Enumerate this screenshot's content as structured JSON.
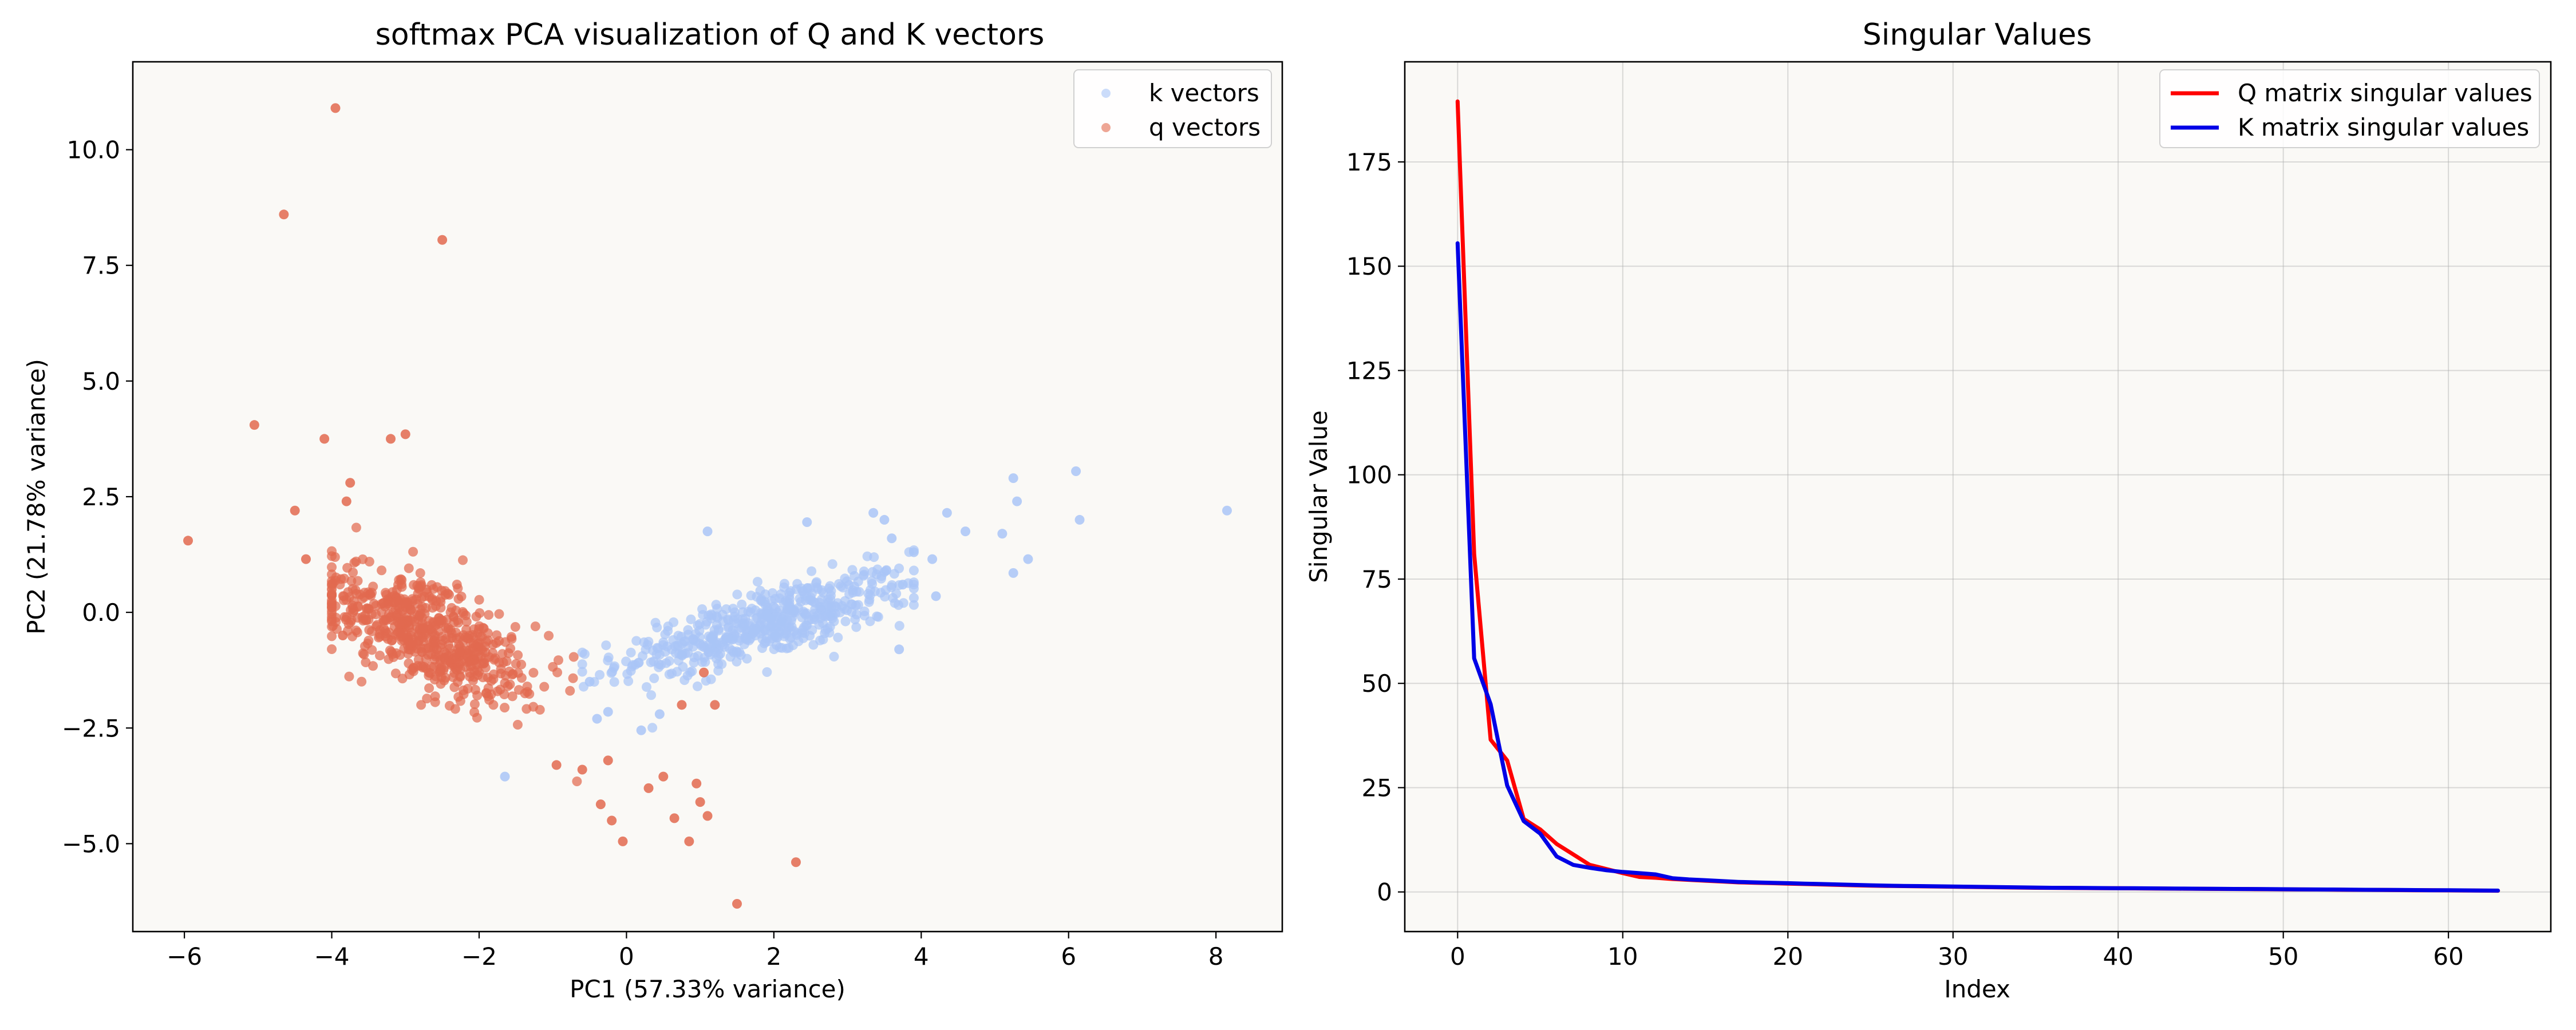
{
  "chart_data": [
    {
      "type": "scatter",
      "title": "softmax PCA visualization of Q and K vectors",
      "xlabel": "PC1 (57.33% variance)",
      "ylabel": "PC2 (21.78% variance)",
      "xlim": [
        -6.7,
        8.9
      ],
      "ylim": [
        -6.9,
        11.9
      ],
      "xticks": [
        -6,
        -4,
        -2,
        0,
        2,
        4,
        6,
        8
      ],
      "yticks": [
        -5.0,
        -2.5,
        0.0,
        2.5,
        5.0,
        7.5,
        10.0
      ],
      "xtick_labels": [
        "−6",
        "−4",
        "−2",
        "0",
        "2",
        "4",
        "6",
        "8"
      ],
      "ytick_labels": [
        "−5.0",
        "−2.5",
        "0.0",
        "2.5",
        "5.0",
        "7.5",
        "10.0"
      ],
      "grid": false,
      "legend": "top-right",
      "background": "#faf9f6",
      "series": [
        {
          "name": "k vectors",
          "color": "#a9c5f7",
          "cluster": {
            "n": 520,
            "center": [
              1.9,
              -0.25
            ],
            "slope": 0.42,
            "spread_x": 1.0,
            "spread_y": 0.38,
            "x_range": [
              -0.6,
              3.9
            ]
          },
          "points": [
            [
              8.15,
              2.2
            ],
            [
              6.1,
              3.05
            ],
            [
              6.15,
              2.0
            ],
            [
              5.25,
              2.9
            ],
            [
              5.3,
              2.4
            ],
            [
              5.1,
              1.7
            ],
            [
              5.45,
              1.15
            ],
            [
              5.25,
              0.85
            ],
            [
              4.35,
              2.15
            ],
            [
              4.6,
              1.75
            ],
            [
              4.15,
              1.15
            ],
            [
              3.9,
              1.3
            ],
            [
              4.2,
              0.35
            ],
            [
              3.6,
              1.6
            ],
            [
              3.5,
              2.0
            ],
            [
              3.75,
              0.6
            ],
            [
              3.7,
              -0.8
            ],
            [
              3.35,
              2.15
            ],
            [
              2.45,
              1.95
            ],
            [
              1.1,
              1.75
            ],
            [
              0.45,
              -2.2
            ],
            [
              -0.25,
              -2.15
            ],
            [
              -0.4,
              -2.3
            ],
            [
              0.2,
              -2.55
            ],
            [
              -1.65,
              -3.55
            ],
            [
              -0.5,
              -1.5
            ]
          ]
        },
        {
          "name": "q vectors",
          "color": "#e26a4f",
          "cluster": {
            "n": 620,
            "center": [
              -2.7,
              -0.5
            ],
            "slope": -0.65,
            "spread_x": 0.75,
            "spread_y": 0.55,
            "x_range": [
              -4.0,
              -0.3
            ]
          },
          "points": [
            [
              -3.95,
              10.9
            ],
            [
              -4.65,
              8.6
            ],
            [
              -2.5,
              8.05
            ],
            [
              -5.05,
              4.05
            ],
            [
              -4.1,
              3.75
            ],
            [
              -3.75,
              2.8
            ],
            [
              -4.5,
              2.2
            ],
            [
              -3.8,
              2.4
            ],
            [
              -3.0,
              3.85
            ],
            [
              -3.2,
              3.75
            ],
            [
              -5.95,
              1.55
            ],
            [
              -4.35,
              1.15
            ],
            [
              -4.0,
              0.5
            ],
            [
              -3.85,
              -0.5
            ],
            [
              -0.95,
              -3.3
            ],
            [
              -0.6,
              -3.4
            ],
            [
              -0.25,
              -3.2
            ],
            [
              0.3,
              -3.8
            ],
            [
              0.5,
              -3.55
            ],
            [
              0.75,
              -2.0
            ],
            [
              1.05,
              -1.3
            ],
            [
              0.95,
              -3.7
            ],
            [
              1.0,
              -4.1
            ],
            [
              0.65,
              -4.45
            ],
            [
              1.1,
              -4.4
            ],
            [
              -0.2,
              -4.5
            ],
            [
              -0.35,
              -4.15
            ],
            [
              -0.05,
              -4.95
            ],
            [
              0.85,
              -4.95
            ],
            [
              1.5,
              -6.3
            ],
            [
              2.3,
              -5.4
            ],
            [
              1.2,
              -2.0
            ]
          ]
        }
      ]
    },
    {
      "type": "line",
      "title": "Singular Values",
      "xlabel": "Index",
      "ylabel": "Singular Value",
      "xlim": [
        -3.2,
        66.2
      ],
      "ylim": [
        -9.5,
        199.0
      ],
      "xticks": [
        0,
        10,
        20,
        30,
        40,
        50,
        60
      ],
      "yticks": [
        0,
        25,
        50,
        75,
        100,
        125,
        150,
        175
      ],
      "xtick_labels": [
        "0",
        "10",
        "20",
        "30",
        "40",
        "50",
        "60"
      ],
      "ytick_labels": [
        "0",
        "25",
        "50",
        "75",
        "100",
        "125",
        "150",
        "175"
      ],
      "grid": true,
      "legend": "top-right",
      "background": "#faf9f6",
      "x": [
        0,
        1,
        2,
        3,
        4,
        5,
        6,
        7,
        8,
        9,
        10,
        11,
        12,
        13,
        14,
        15,
        16,
        17,
        18,
        19,
        20,
        21,
        22,
        23,
        24,
        25,
        26,
        27,
        28,
        29,
        30,
        31,
        32,
        33,
        34,
        35,
        36,
        37,
        38,
        39,
        40,
        41,
        42,
        43,
        44,
        45,
        46,
        47,
        48,
        49,
        50,
        51,
        52,
        53,
        54,
        55,
        56,
        57,
        58,
        59,
        60,
        61,
        62,
        63
      ],
      "series": [
        {
          "name": "Q matrix singular values",
          "color": "#ff0000",
          "values": [
            189.5,
            81.0,
            36.5,
            31.5,
            17.5,
            15.0,
            11.5,
            9.0,
            6.5,
            5.5,
            4.5,
            3.6,
            3.4,
            3.1,
            2.9,
            2.7,
            2.5,
            2.3,
            2.2,
            2.1,
            2.0,
            1.9,
            1.8,
            1.7,
            1.6,
            1.5,
            1.45,
            1.4,
            1.35,
            1.3,
            1.25,
            1.2,
            1.15,
            1.1,
            1.05,
            1.0,
            0.98,
            0.95,
            0.92,
            0.9,
            0.88,
            0.85,
            0.82,
            0.8,
            0.78,
            0.75,
            0.72,
            0.7,
            0.68,
            0.65,
            0.62,
            0.6,
            0.58,
            0.55,
            0.52,
            0.5,
            0.48,
            0.45,
            0.42,
            0.4,
            0.38,
            0.35,
            0.32,
            0.3
          ]
        },
        {
          "name": "K matrix singular values",
          "color": "#0000e6",
          "values": [
            155.5,
            56.0,
            45.0,
            25.5,
            17.0,
            14.0,
            8.5,
            6.5,
            5.8,
            5.2,
            4.8,
            4.5,
            4.2,
            3.3,
            3.0,
            2.8,
            2.6,
            2.4,
            2.3,
            2.2,
            2.1,
            2.0,
            1.9,
            1.8,
            1.7,
            1.6,
            1.5,
            1.45,
            1.4,
            1.35,
            1.3,
            1.25,
            1.2,
            1.15,
            1.1,
            1.05,
            1.0,
            0.98,
            0.95,
            0.92,
            0.9,
            0.88,
            0.85,
            0.82,
            0.8,
            0.78,
            0.75,
            0.72,
            0.7,
            0.68,
            0.65,
            0.62,
            0.6,
            0.58,
            0.55,
            0.52,
            0.5,
            0.48,
            0.45,
            0.42,
            0.4,
            0.38,
            0.35,
            0.32
          ]
        }
      ]
    }
  ]
}
